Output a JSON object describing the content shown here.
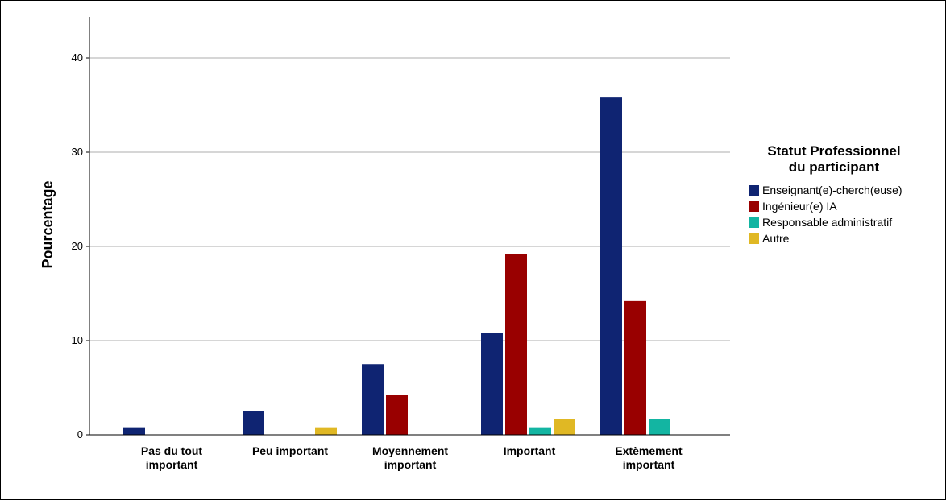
{
  "chart_data": {
    "type": "bar",
    "ylabel": "Pourcentage",
    "xlabel": "",
    "ylim": [
      0,
      44
    ],
    "yticks": [
      0,
      10,
      20,
      30,
      40
    ],
    "grid": true,
    "legend_position": "right",
    "legend_title_lines": [
      "Statut Professionnel",
      "du participant"
    ],
    "categories": [
      [
        "Pas du tout",
        "important"
      ],
      [
        "Peu important"
      ],
      [
        "Moyennement",
        "important"
      ],
      [
        "Important"
      ],
      [
        "Extèmement",
        "important"
      ]
    ],
    "series": [
      {
        "name": "Enseignant(e)-cherch(euse)",
        "color": "#0f2472",
        "values": [
          0.8,
          2.5,
          7.5,
          10.8,
          35.8
        ]
      },
      {
        "name": "Ingénieur(e) IA",
        "color": "#990000",
        "values": [
          0,
          0,
          4.2,
          19.2,
          14.2
        ]
      },
      {
        "name": "Responsable administratif",
        "color": "#13b5a2",
        "values": [
          0,
          0,
          0,
          0.8,
          1.7
        ]
      },
      {
        "name": "Autre",
        "color": "#e0b824",
        "values": [
          0,
          0.8,
          0,
          1.7,
          0
        ]
      }
    ]
  }
}
